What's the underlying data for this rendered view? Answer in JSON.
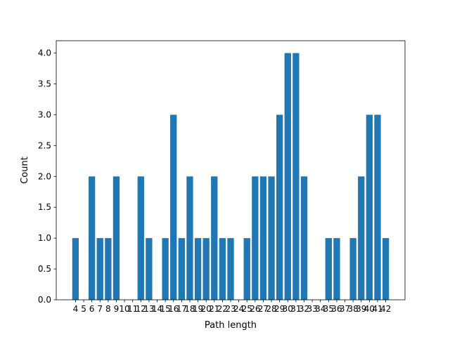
{
  "chart_data": {
    "type": "bar",
    "title": "",
    "xlabel": "Path length",
    "ylabel": "Count",
    "ylim": [
      0,
      4.2
    ],
    "yticks": [
      "0.0",
      "0.5",
      "1.0",
      "1.5",
      "2.0",
      "2.5",
      "3.0",
      "3.5",
      "4.0"
    ],
    "bar_color": "#1f77b4",
    "categories": [
      4,
      5,
      6,
      7,
      8,
      9,
      10,
      11,
      12,
      13,
      14,
      15,
      16,
      17,
      18,
      19,
      20,
      21,
      22,
      23,
      24,
      25,
      26,
      27,
      28,
      29,
      30,
      31,
      32,
      33,
      34,
      35,
      36,
      37,
      38,
      39,
      40,
      41,
      42
    ],
    "values": [
      1,
      0,
      2,
      1,
      1,
      2,
      0,
      0,
      2,
      1,
      0,
      1,
      3,
      1,
      2,
      1,
      1,
      2,
      1,
      1,
      0,
      1,
      2,
      2,
      2,
      3,
      4,
      4,
      2,
      0,
      0,
      1,
      1,
      0,
      1,
      2,
      3,
      3,
      1
    ],
    "grid": false,
    "legend": "none"
  }
}
